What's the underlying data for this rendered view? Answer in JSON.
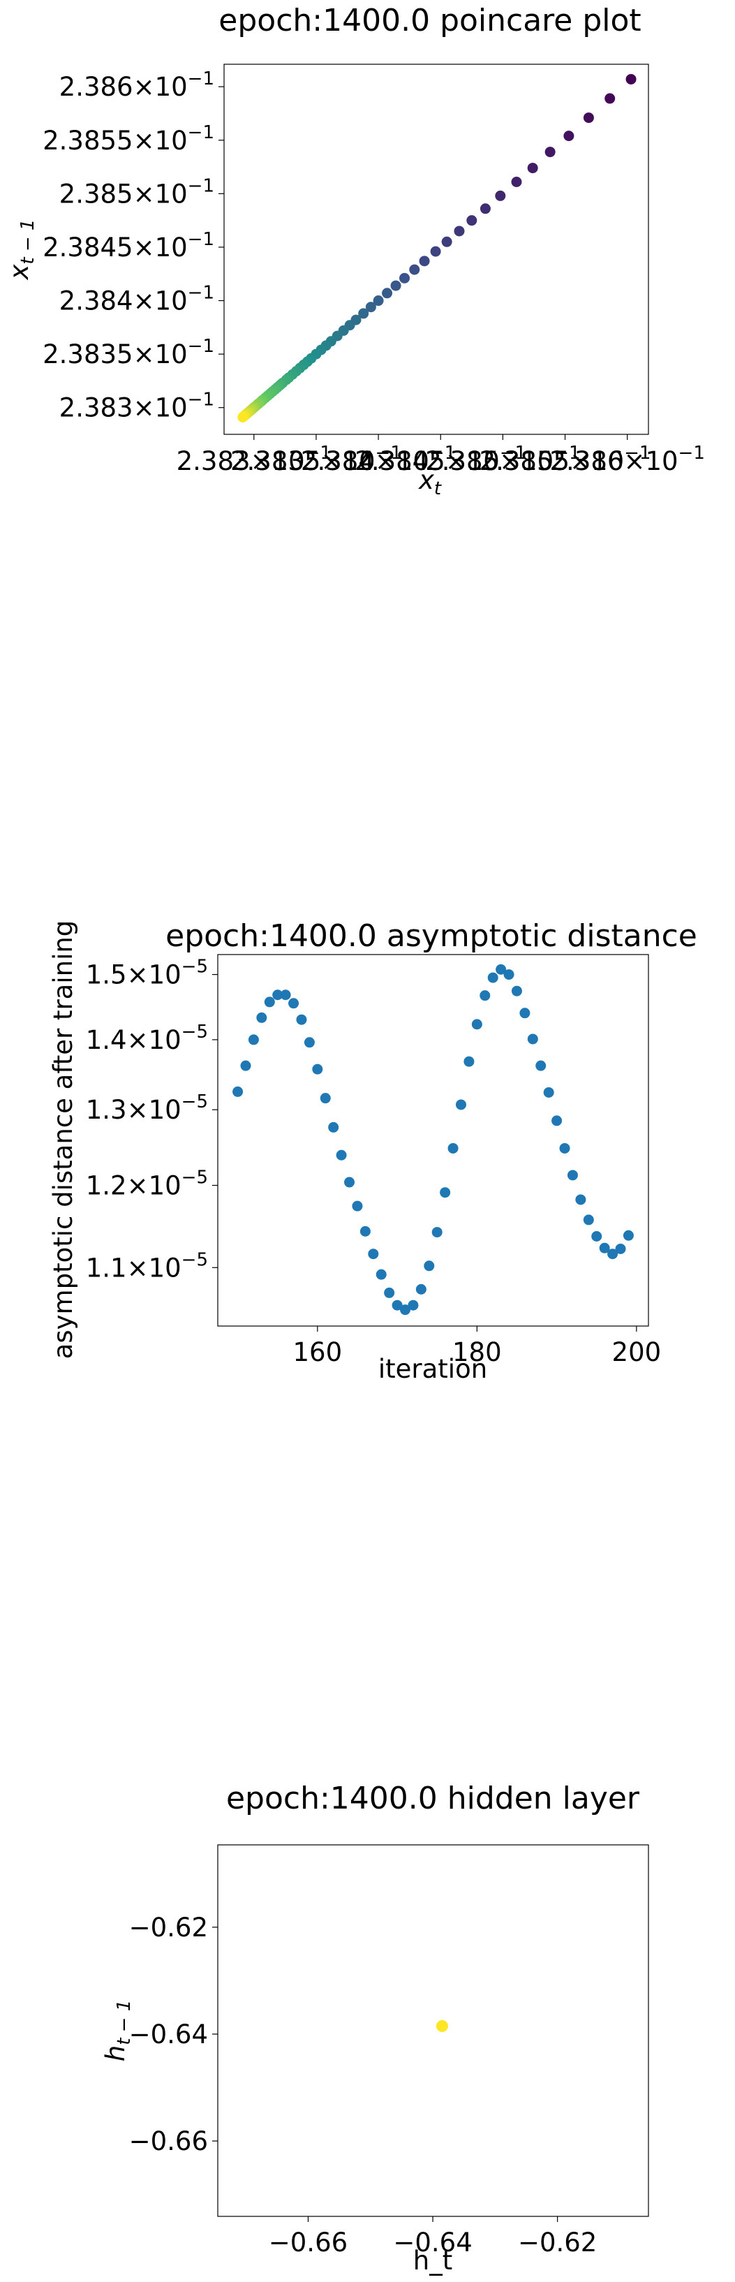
{
  "chart_data": [
    {
      "type": "scatter",
      "title": "epoch:1400.0 poincare plot",
      "xlabel_main": "x",
      "xlabel_sub": "t",
      "ylabel_main": "x",
      "ylabel_sub": "t − 1",
      "x_tick_labels": [
        "2.383",
        "2.3835",
        "2.384",
        "2.3845",
        "2.385",
        "2.3855",
        "2.386"
      ],
      "y_tick_labels": [
        {
          "mantissa": "2.383",
          "exp": "−1"
        },
        {
          "mantissa": "2.3835",
          "exp": "−1"
        },
        {
          "mantissa": "2.384",
          "exp": "−1"
        },
        {
          "mantissa": "2.3845",
          "exp": "−1"
        },
        {
          "mantissa": "2.385",
          "exp": "−1"
        },
        {
          "mantissa": "2.3855",
          "exp": "−1"
        },
        {
          "mantissa": "2.386",
          "exp": "−1"
        }
      ],
      "x_tick_values": [
        0.2383,
        0.23835,
        0.2384,
        0.23845,
        0.2385,
        0.23855,
        0.2386
      ],
      "y_tick_values": [
        0.2383,
        0.23835,
        0.2384,
        0.23845,
        0.2385,
        0.23855,
        0.2386
      ],
      "xlim": [
        0.238276,
        0.238617
      ],
      "ylim": [
        0.238275,
        0.238621
      ],
      "colormap": [
        "#440154",
        "#3b528b",
        "#21918c",
        "#5ec962",
        "#fde725"
      ],
      "points": [
        [
          0.238603,
          0.238607
        ],
        [
          0.238586,
          0.238589
        ],
        [
          0.238569,
          0.238571
        ],
        [
          0.238553,
          0.238554
        ],
        [
          0.238538,
          0.238539
        ],
        [
          0.238524,
          0.238524
        ],
        [
          0.238511,
          0.238511
        ],
        [
          0.238498,
          0.238498
        ],
        [
          0.238486,
          0.238486
        ],
        [
          0.238475,
          0.238475
        ],
        [
          0.238465,
          0.238465
        ],
        [
          0.238455,
          0.238455
        ],
        [
          0.238446,
          0.238446
        ],
        [
          0.238437,
          0.238437
        ],
        [
          0.238429,
          0.238429
        ],
        [
          0.238421,
          0.238421
        ],
        [
          0.238414,
          0.238414
        ],
        [
          0.238407,
          0.238407
        ],
        [
          0.2384,
          0.2384
        ],
        [
          0.238394,
          0.238394
        ],
        [
          0.238388,
          0.238388
        ],
        [
          0.238382,
          0.238382
        ],
        [
          0.238377,
          0.238377
        ],
        [
          0.238372,
          0.238372
        ],
        [
          0.238367,
          0.238367
        ],
        [
          0.238362,
          0.238362
        ],
        [
          0.238358,
          0.238358
        ],
        [
          0.238354,
          0.238354
        ],
        [
          0.23835,
          0.23835
        ],
        [
          0.238346,
          0.238346
        ],
        [
          0.238343,
          0.238343
        ],
        [
          0.23834,
          0.23834
        ],
        [
          0.238337,
          0.238337
        ],
        [
          0.238334,
          0.238334
        ],
        [
          0.238331,
          0.238331
        ],
        [
          0.238328,
          0.238328
        ],
        [
          0.238326,
          0.238326
        ],
        [
          0.238323,
          0.238323
        ],
        [
          0.238321,
          0.238321
        ],
        [
          0.238319,
          0.238319
        ],
        [
          0.238317,
          0.238317
        ],
        [
          0.238315,
          0.238315
        ],
        [
          0.238313,
          0.238313
        ],
        [
          0.238311,
          0.238311
        ],
        [
          0.238309,
          0.238309
        ],
        [
          0.238307,
          0.238307
        ],
        [
          0.238306,
          0.238306
        ],
        [
          0.238304,
          0.238304
        ],
        [
          0.238303,
          0.238303
        ],
        [
          0.238301,
          0.238301
        ],
        [
          0.2383,
          0.2383
        ],
        [
          0.238299,
          0.238299
        ],
        [
          0.238298,
          0.238298
        ],
        [
          0.238297,
          0.238297
        ],
        [
          0.238296,
          0.238296
        ],
        [
          0.238295,
          0.238295
        ],
        [
          0.238294,
          0.238294
        ],
        [
          0.238293,
          0.238293
        ],
        [
          0.238292,
          0.238292
        ],
        [
          0.238291,
          0.238291
        ]
      ],
      "grid": false
    },
    {
      "type": "scatter",
      "title": "epoch:1400.0 asymptotic distance",
      "xlabel": "iteration",
      "ylabel": "asymptotic distance after training",
      "x_tick_labels": [
        "160",
        "180",
        "200"
      ],
      "x_tick_values": [
        160,
        180,
        200
      ],
      "y_tick_labels": [
        {
          "mantissa": "1.1",
          "exp": "−5"
        },
        {
          "mantissa": "1.2",
          "exp": "−5"
        },
        {
          "mantissa": "1.3",
          "exp": "−5"
        },
        {
          "mantissa": "1.4",
          "exp": "−5"
        },
        {
          "mantissa": "1.5",
          "exp": "−5"
        }
      ],
      "y_tick_values": [
        1.1e-05,
        1.2e-05,
        1.3e-05,
        1.4e-05,
        1.5e-05
      ],
      "y_scale": "log",
      "xlim": [
        147.5,
        201.5
      ],
      "ylim": [
        1.034e-05,
        1.532e-05
      ],
      "color": "#1f77b4",
      "x": [
        150,
        151,
        152,
        153,
        154,
        155,
        156,
        157,
        158,
        159,
        160,
        161,
        162,
        163,
        164,
        165,
        166,
        167,
        168,
        169,
        170,
        171,
        172,
        173,
        174,
        175,
        176,
        177,
        178,
        179,
        180,
        181,
        182,
        183,
        184,
        185,
        186,
        187,
        188,
        189,
        190,
        191,
        192,
        193,
        194,
        195,
        196,
        197,
        198,
        199
      ],
      "y": [
        1.325e-05,
        1.362e-05,
        1.4e-05,
        1.433e-05,
        1.457e-05,
        1.468e-05,
        1.468e-05,
        1.455e-05,
        1.43e-05,
        1.396e-05,
        1.357e-05,
        1.316e-05,
        1.276e-05,
        1.239e-05,
        1.204e-05,
        1.174e-05,
        1.143e-05,
        1.116e-05,
        1.092e-05,
        1.071e-05,
        1.057e-05,
        1.052e-05,
        1.057e-05,
        1.075e-05,
        1.102e-05,
        1.142e-05,
        1.191e-05,
        1.248e-05,
        1.307e-05,
        1.368e-05,
        1.423e-05,
        1.467e-05,
        1.495e-05,
        1.508e-05,
        1.5e-05,
        1.474e-05,
        1.44e-05,
        1.401e-05,
        1.362e-05,
        1.324e-05,
        1.285e-05,
        1.248e-05,
        1.213e-05,
        1.182e-05,
        1.157e-05,
        1.137e-05,
        1.123e-05,
        1.116e-05,
        1.122e-05,
        1.138e-05
      ],
      "grid": false
    },
    {
      "type": "scatter",
      "title": "epoch:1400.0 hidden layer",
      "xlabel": "h_t",
      "ylabel_main": "h",
      "ylabel_sub": "t − 1",
      "x_tick_labels": [
        "−0.66",
        "−0.64",
        "−0.62"
      ],
      "x_tick_values": [
        -0.66,
        -0.64,
        -0.62
      ],
      "y_tick_labels": [
        "−0.62",
        "−0.64",
        "−0.66"
      ],
      "y_tick_values": [
        -0.62,
        -0.64,
        -0.66
      ],
      "xlim": [
        -0.6745,
        -0.6054
      ],
      "ylim": [
        -0.6741,
        -0.6046
      ],
      "color": "#fde725",
      "points": [
        [
          -0.6385,
          -0.6385
        ]
      ],
      "grid": false
    }
  ]
}
